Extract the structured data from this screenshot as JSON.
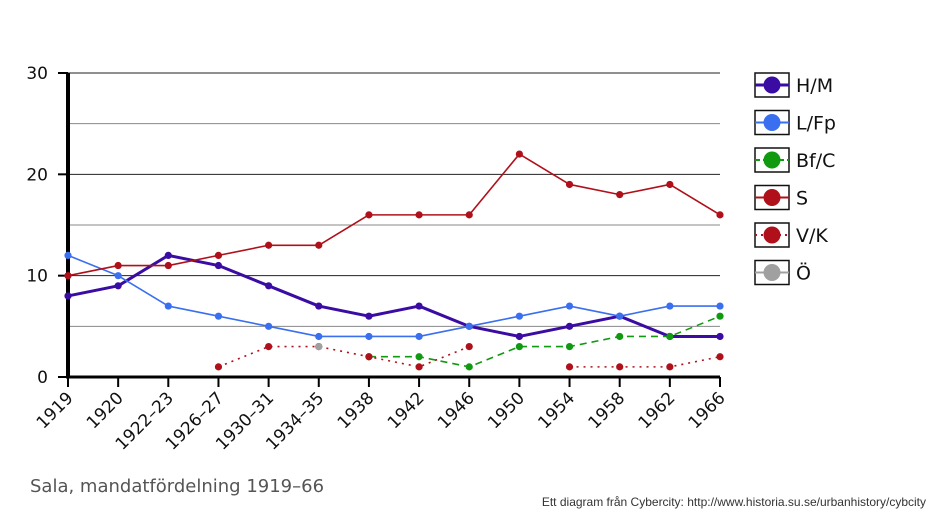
{
  "caption": "Sala, mandatfördelning 1919–66",
  "credit": "Ett diagram från Cybercity: http://www.historia.su.se/urbanhistory/cybcity",
  "chart_data": {
    "type": "line",
    "title": "",
    "xlabel": "",
    "ylabel": "",
    "ylim": [
      0,
      30
    ],
    "yticks": [
      0,
      10,
      20,
      30
    ],
    "grid": true,
    "legend_position": "right",
    "categories": [
      "1919",
      "1920",
      "1922–23",
      "1926–27",
      "1930–31",
      "1934–35",
      "1938",
      "1942",
      "1946",
      "1950",
      "1954",
      "1958",
      "1962",
      "1966"
    ],
    "series": [
      {
        "name": "H/M",
        "color": "#3a0ca3",
        "dash": "solid",
        "width": 3,
        "values": [
          8,
          9,
          12,
          11,
          9,
          7,
          6,
          7,
          5,
          4,
          5,
          6,
          4,
          4
        ]
      },
      {
        "name": "L/Fp",
        "color": "#3a6ff0",
        "dash": "solid",
        "width": 1.6,
        "values": [
          12,
          10,
          7,
          6,
          5,
          4,
          4,
          4,
          5,
          6,
          7,
          6,
          7,
          7
        ]
      },
      {
        "name": "Bf/C",
        "color": "#109a10",
        "dash": "dashed",
        "width": 1.6,
        "values": [
          null,
          null,
          null,
          null,
          null,
          null,
          2,
          2,
          1,
          3,
          3,
          4,
          4,
          6
        ]
      },
      {
        "name": "S",
        "color": "#b0101a",
        "dash": "solid",
        "width": 1.6,
        "values": [
          10,
          11,
          11,
          12,
          13,
          13,
          16,
          16,
          16,
          22,
          19,
          18,
          19,
          16
        ]
      },
      {
        "name": "V/K",
        "color": "#b0101a",
        "dash": "dotted",
        "width": 1.6,
        "values": [
          null,
          null,
          null,
          1,
          3,
          3,
          2,
          1,
          3,
          null,
          1,
          1,
          1,
          2
        ]
      },
      {
        "name": "Ö",
        "color": "#a0a0a0",
        "dash": "solid",
        "width": 1.6,
        "values": [
          null,
          null,
          null,
          null,
          null,
          3,
          null,
          null,
          null,
          null,
          null,
          null,
          null,
          null
        ]
      }
    ]
  }
}
